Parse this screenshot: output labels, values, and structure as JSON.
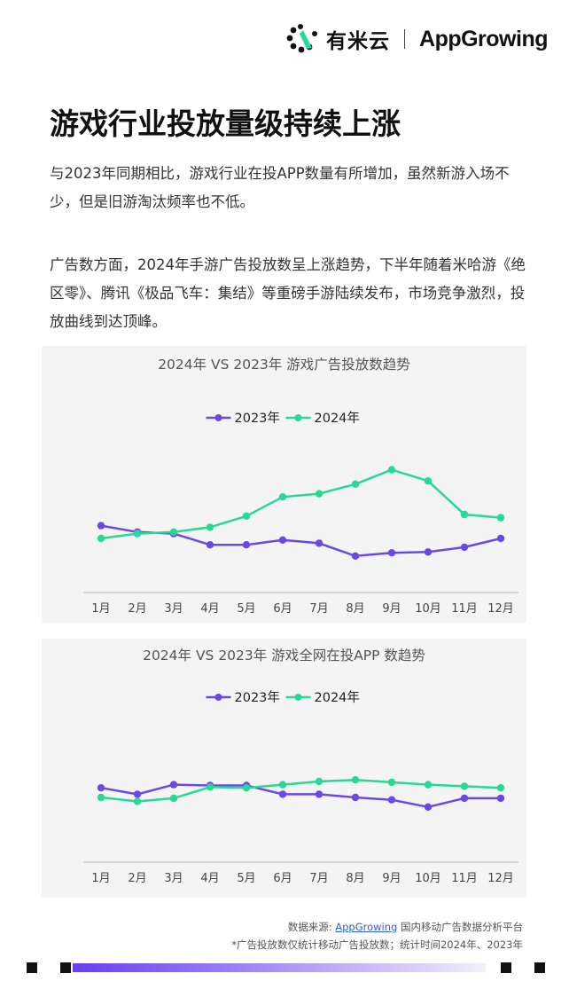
{
  "header": {
    "brand_cn": "有米云",
    "brand_en": "AppGrowing"
  },
  "title": "游戏行业投放量级持续上涨",
  "paragraphs": [
    "与2023年同期相比，游戏行业在投APP数量有所增加，虽然新游入场不少，但是旧游淘汰频率也不低。",
    "广告数方面，2024年手游广告投放数呈上涨趋势，下半年随着米哈游《绝区零》、腾讯《极品飞车：集结》等重磅手游陆续发布，市场竞争激烈，投放曲线到达顶峰。"
  ],
  "colors": {
    "series_2023": "#6b48e6",
    "series_2024": "#27d995",
    "accent_link": "#2d5fd3"
  },
  "chart_data": [
    {
      "type": "line",
      "title": "2024年 VS 2023年 游戏广告投放数趋势",
      "categories": [
        "1月",
        "2月",
        "3月",
        "4月",
        "5月",
        "6月",
        "7月",
        "8月",
        "9月",
        "10月",
        "11月",
        "12月"
      ],
      "series": [
        {
          "name": "2023年",
          "values": [
            43,
            39,
            38,
            31,
            31,
            34,
            32,
            24,
            26,
            26.5,
            29.5,
            35
          ]
        },
        {
          "name": "2024年",
          "values": [
            35,
            38,
            39,
            42,
            49,
            61,
            63,
            69,
            78,
            71,
            50,
            48
          ]
        }
      ],
      "ylim": [
        0,
        100
      ],
      "grid": false,
      "legend": "top-center"
    },
    {
      "type": "line",
      "title": "2024年 VS 2023年 游戏全网在投APP 数趋势",
      "categories": [
        "1月",
        "2月",
        "3月",
        "4月",
        "5月",
        "6月",
        "7月",
        "8月",
        "9月",
        "10月",
        "11月",
        "12月"
      ],
      "series": [
        {
          "name": "2023年",
          "values": [
            51,
            47,
            53,
            52.5,
            52.5,
            47,
            47,
            45,
            43.5,
            39,
            44.5,
            44.5
          ]
        },
        {
          "name": "2024年",
          "values": [
            45,
            42.5,
            44.5,
            51.5,
            51,
            53,
            55,
            56,
            54.5,
            53,
            52,
            51
          ]
        }
      ],
      "ylim": [
        0,
        100
      ],
      "grid": false,
      "legend": "top-center"
    }
  ],
  "source": {
    "prefix": "数据来源: ",
    "link": "AppGrowing",
    "suffix": " 国内移动广告数据分析平台",
    "note": "*广告投放数仅统计移动广告投放数；统计时间2024年、2023年"
  }
}
